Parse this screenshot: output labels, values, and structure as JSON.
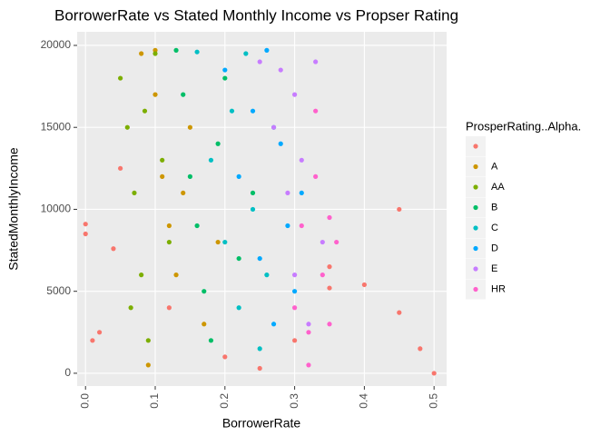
{
  "chart_data": {
    "type": "scatter",
    "title": "BorrowerRate vs Stated Monthly Income vs Propser Rating",
    "x_label": "BorrowerRate",
    "y_label": "StatedMonthlyIncome",
    "legend_title": "ProsperRating..Alpha.",
    "xlim": [
      -0.012,
      0.518
    ],
    "ylim": [
      -780,
      20830
    ],
    "xticks": [
      {
        "value": 0,
        "label": "0.0"
      },
      0.1,
      0.2,
      0.3,
      0.4,
      0.5
    ],
    "yticks": [
      0,
      5000,
      10000,
      15000,
      20000
    ],
    "grid": true,
    "legend": "right",
    "series": [
      {
        "name": null,
        "color": "#F8766D",
        "x": [
          0.0,
          0.0,
          0.01,
          0.02,
          0.04,
          0.05,
          0.12,
          0.2,
          0.3,
          0.35,
          0.4,
          0.45,
          0.45,
          0.48,
          0.5,
          0.35,
          0.25
        ],
        "values": [
          9100,
          8500,
          2000,
          2500,
          7600,
          12500,
          4000,
          1000,
          2000,
          5200,
          5400,
          10000,
          3700,
          1500,
          0,
          6500,
          300
        ]
      },
      {
        "name": "A",
        "color": "#CD9600",
        "x": [
          0.08,
          0.1,
          0.11,
          0.12,
          0.13,
          0.15,
          0.17,
          0.09,
          0.14,
          0.1,
          0.19
        ],
        "values": [
          19500,
          17000,
          12000,
          9000,
          6000,
          15000,
          3000,
          500,
          11000,
          19700,
          8000
        ]
      },
      {
        "name": "AA",
        "color": "#7CAE00",
        "x": [
          0.05,
          0.06,
          0.07,
          0.08,
          0.09,
          0.1,
          0.11,
          0.12,
          0.065,
          0.085
        ],
        "values": [
          18000,
          15000,
          11000,
          6000,
          2000,
          19500,
          13000,
          8000,
          4000,
          16000
        ]
      },
      {
        "name": "B",
        "color": "#00BE67",
        "x": [
          0.13,
          0.14,
          0.15,
          0.16,
          0.17,
          0.18,
          0.19,
          0.2,
          0.22,
          0.24
        ],
        "values": [
          19700,
          17000,
          12000,
          9000,
          5000,
          2000,
          14000,
          18000,
          7000,
          11000
        ]
      },
      {
        "name": "C",
        "color": "#00BFC4",
        "x": [
          0.16,
          0.18,
          0.2,
          0.21,
          0.22,
          0.23,
          0.24,
          0.25,
          0.26,
          0.27
        ],
        "values": [
          19600,
          13000,
          8000,
          16000,
          4000,
          19500,
          10000,
          1500,
          6000,
          15000
        ]
      },
      {
        "name": "D",
        "color": "#00A9FF",
        "x": [
          0.2,
          0.22,
          0.24,
          0.25,
          0.26,
          0.27,
          0.28,
          0.29,
          0.3,
          0.31
        ],
        "values": [
          18500,
          12000,
          16000,
          7000,
          19700,
          3000,
          14000,
          9000,
          5000,
          11000
        ]
      },
      {
        "name": "E",
        "color": "#C77CFF",
        "x": [
          0.25,
          0.27,
          0.28,
          0.29,
          0.3,
          0.31,
          0.32,
          0.33,
          0.34,
          0.3
        ],
        "values": [
          19000,
          15000,
          18500,
          11000,
          6000,
          13000,
          3000,
          19000,
          8000,
          17000
        ]
      },
      {
        "name": "HR",
        "color": "#FF61CC",
        "x": [
          0.3,
          0.31,
          0.32,
          0.33,
          0.34,
          0.35,
          0.36,
          0.32,
          0.35,
          0.33
        ],
        "values": [
          4000,
          9000,
          2500,
          12000,
          6000,
          9500,
          8000,
          500,
          3000,
          16000
        ]
      }
    ]
  }
}
